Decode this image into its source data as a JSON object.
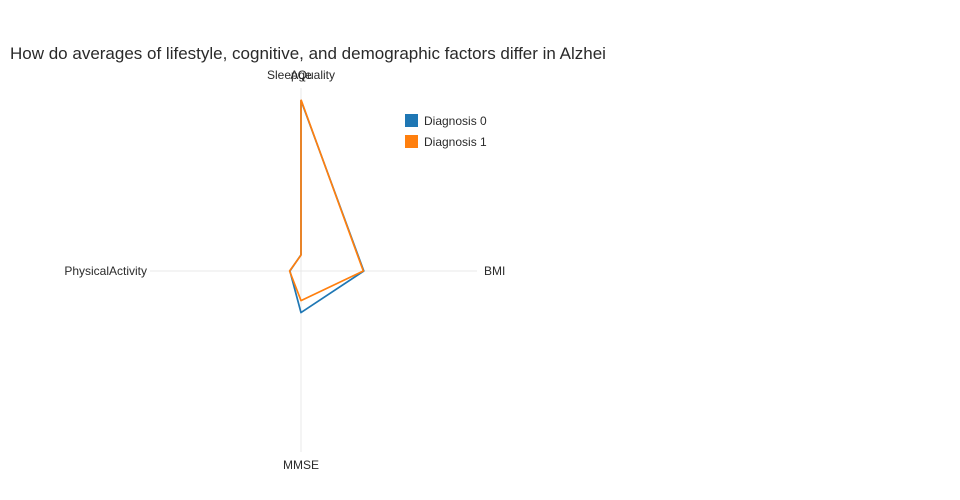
{
  "chart_data": {
    "type": "radar",
    "title": "How do averages of lifestyle, cognitive, and demographic factors differ in Alzhei",
    "categories": [
      "Age",
      "BMI",
      "MMSE",
      "PhysicalActivity",
      "SleepQuality"
    ],
    "angles_deg": [
      90,
      0,
      270,
      180,
      90
    ],
    "rmax": 80,
    "series": [
      {
        "name": "Diagnosis 0",
        "color": "#1f77b4",
        "values": [
          75.0,
          27.6,
          18.3,
          4.9,
          7.1
        ]
      },
      {
        "name": "Diagnosis 1",
        "color": "#ff7f0e",
        "values": [
          75.3,
          27.4,
          13.0,
          5.0,
          7.0
        ]
      }
    ],
    "legend": {
      "entries": [
        "Diagnosis 0",
        "Diagnosis 1"
      ],
      "position": "inside-top-center"
    },
    "grid": "radial-axis-lines-only",
    "axis_line_color": "#e8e8e8"
  }
}
